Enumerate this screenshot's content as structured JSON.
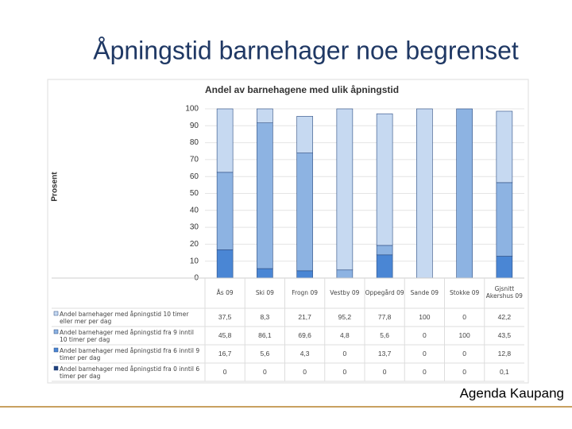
{
  "title": "Åpningstid barnehager noe begrenset",
  "footer": "Agenda Kaupang",
  "chart_data": {
    "type": "stacked-bar",
    "title": "Andel av barnehagene med ulik åpningstid",
    "y_label": "Prosent",
    "categories": [
      "Ås 09",
      "Ski 09",
      "Frogn 09",
      "Vestby 09",
      "Oppegård 09",
      "Sande 09",
      "Stokke 09",
      "Gjsnitt Akershus 09"
    ],
    "ylim": [
      0,
      100
    ],
    "yticks": [
      0,
      10,
      20,
      30,
      40,
      50,
      60,
      70,
      80,
      90,
      100
    ],
    "grid": true,
    "series": [
      {
        "name": "Andel barnehager med åpningstid 10 timer eller mer per dag",
        "color": "#c6d9f1",
        "values": [
          37.5,
          8.3,
          21.7,
          95.2,
          77.8,
          100,
          0,
          42.2
        ],
        "value_labels": [
          "37,5",
          "8,3",
          "21,7",
          "95,2",
          "77,8",
          "100",
          "0",
          "42,2"
        ]
      },
      {
        "name": "Andel barnehager med åpningstid fra 9 inntil 10 timer per dag",
        "color": "#8db3e2",
        "values": [
          45.8,
          86.1,
          69.6,
          4.8,
          5.6,
          0,
          100,
          43.5
        ],
        "value_labels": [
          "45,8",
          "86,1",
          "69,6",
          "4,8",
          "5,6",
          "0",
          "100",
          "43,5"
        ]
      },
      {
        "name": "Andel barnehager med åpningstid fra 6 inntil 9 timer per dag",
        "color": "#4a86d4",
        "values": [
          16.7,
          5.6,
          4.3,
          0,
          13.7,
          0,
          0,
          12.8
        ],
        "value_labels": [
          "16,7",
          "5,6",
          "4,3",
          "0",
          "13,7",
          "0",
          "0",
          "12,8"
        ]
      },
      {
        "name": "Andel barnehager med åpningstid fra 0 inntil 6 timer per dag",
        "color": "#1f3f7a",
        "values": [
          0,
          0,
          0,
          0,
          0,
          0,
          0,
          0.1
        ],
        "value_labels": [
          "0",
          "0",
          "0",
          "0",
          "0",
          "0",
          "0",
          "0,1"
        ]
      }
    ]
  }
}
